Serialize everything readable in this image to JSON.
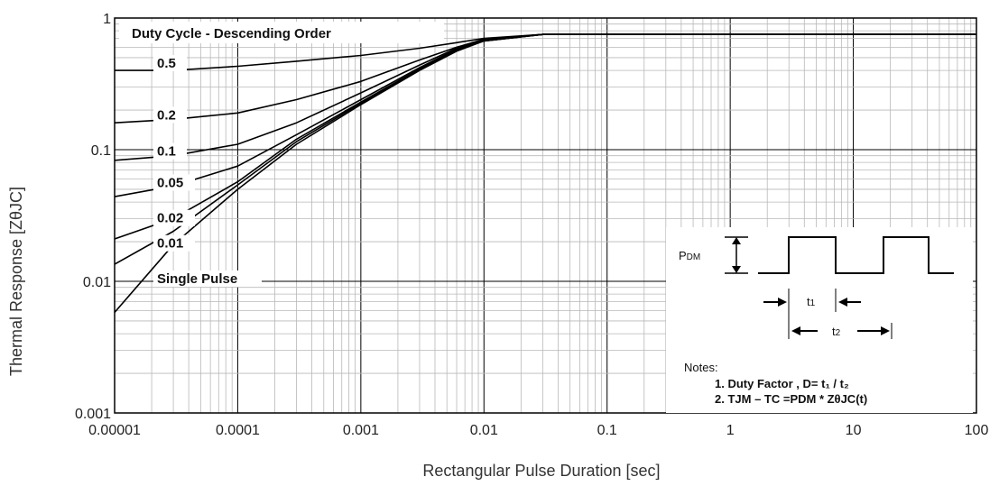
{
  "chart_data": {
    "type": "line",
    "xlabel": "Rectangular Pulse Duration [sec]",
    "ylabel": "Thermal Response [ZθJC]",
    "x_scale": "log",
    "y_scale": "log",
    "xlim": [
      1e-05,
      100
    ],
    "ylim": [
      0.001,
      1
    ],
    "x_tick_labels": [
      "0.00001",
      "0.0001",
      "0.001",
      "0.01",
      "0.1",
      "1",
      "10",
      "100"
    ],
    "y_tick_labels": [
      "0.001",
      "0.01",
      "0.1",
      "1"
    ],
    "grid": true,
    "legend_title": "Duty Cycle - Descending Order",
    "series": [
      {
        "name": "0.5",
        "x": [
          1e-05,
          3e-05,
          0.0001,
          0.0003,
          0.001,
          0.003,
          0.006,
          0.01,
          0.03,
          100
        ],
        "y": [
          0.4,
          0.4,
          0.43,
          0.47,
          0.52,
          0.59,
          0.65,
          0.7,
          0.75,
          0.75
        ]
      },
      {
        "name": "0.2",
        "x": [
          1e-05,
          3e-05,
          0.0001,
          0.0003,
          0.001,
          0.003,
          0.006,
          0.01,
          0.03,
          100
        ],
        "y": [
          0.16,
          0.17,
          0.19,
          0.24,
          0.33,
          0.48,
          0.6,
          0.69,
          0.75,
          0.75
        ]
      },
      {
        "name": "0.1",
        "x": [
          1e-05,
          3e-05,
          0.0001,
          0.0003,
          0.001,
          0.003,
          0.006,
          0.01,
          0.03,
          100
        ],
        "y": [
          0.083,
          0.09,
          0.11,
          0.16,
          0.27,
          0.44,
          0.59,
          0.68,
          0.75,
          0.75
        ]
      },
      {
        "name": "0.05",
        "x": [
          1e-05,
          3e-05,
          0.0001,
          0.0003,
          0.001,
          0.003,
          0.006,
          0.01,
          0.03,
          100
        ],
        "y": [
          0.044,
          0.053,
          0.075,
          0.13,
          0.24,
          0.42,
          0.58,
          0.68,
          0.75,
          0.75
        ]
      },
      {
        "name": "0.02",
        "x": [
          1e-05,
          3e-05,
          0.0001,
          0.0003,
          0.001,
          0.003,
          0.006,
          0.01,
          0.03,
          100
        ],
        "y": [
          0.021,
          0.03,
          0.057,
          0.12,
          0.23,
          0.41,
          0.57,
          0.67,
          0.75,
          0.75
        ]
      },
      {
        "name": "0.01",
        "x": [
          1e-05,
          3e-05,
          0.0001,
          0.0003,
          0.001,
          0.003,
          0.006,
          0.01,
          0.03,
          100
        ],
        "y": [
          0.0135,
          0.024,
          0.054,
          0.115,
          0.225,
          0.405,
          0.57,
          0.67,
          0.75,
          0.75
        ]
      },
      {
        "name": "Single Pulse",
        "x": [
          1e-05,
          3e-05,
          0.0001,
          0.0003,
          0.001,
          0.003,
          0.006,
          0.01,
          0.03,
          100
        ],
        "y": [
          0.0058,
          0.019,
          0.05,
          0.11,
          0.22,
          0.4,
          0.56,
          0.67,
          0.75,
          0.75
        ]
      }
    ]
  },
  "notes": {
    "pdm": "P",
    "pdm_sub": "DM",
    "t1": "t",
    "t1_sub": "1",
    "t2": "t",
    "t2_sub": "2",
    "title": "Notes:",
    "line1": "1. Duty Factor ,   D= t₁ / t₂",
    "line2": "2. TJM – TC  =PDM * ZθJC(t)"
  },
  "colors": {
    "curve": "#000000",
    "grid": "#b8b8b8",
    "major_grid": "#000000"
  }
}
